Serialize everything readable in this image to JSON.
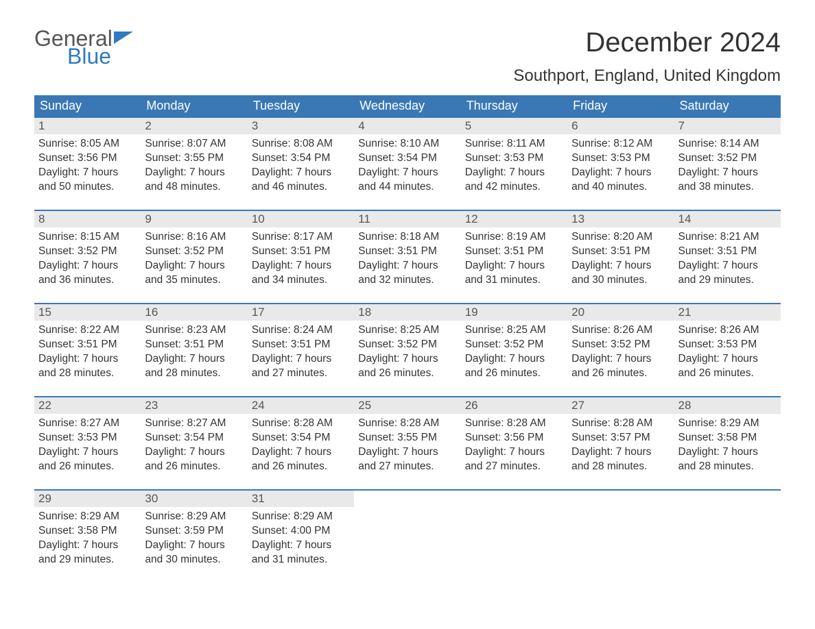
{
  "logo": {
    "text1": "General",
    "text2": "Blue",
    "text1_color": "#555555",
    "text2_color": "#2f7ac0",
    "flag_color": "#2f7ac0"
  },
  "header": {
    "month_year": "December 2024",
    "location": "Southport, England, United Kingdom"
  },
  "colors": {
    "header_bg": "#3a78b5",
    "header_text": "#ffffff",
    "daynum_bg": "#e9e9e9",
    "week_border": "#3a78b5",
    "body_text": "#333333"
  },
  "typography": {
    "month_title_fontsize": 40,
    "location_fontsize": 24,
    "dayhead_fontsize": 18,
    "daynum_fontsize": 17,
    "body_fontsize": 15.5
  },
  "day_names": [
    "Sunday",
    "Monday",
    "Tuesday",
    "Wednesday",
    "Thursday",
    "Friday",
    "Saturday"
  ],
  "weeks": [
    [
      {
        "n": "1",
        "sr": "Sunrise: 8:05 AM",
        "ss": "Sunset: 3:56 PM",
        "d1": "Daylight: 7 hours",
        "d2": "and 50 minutes."
      },
      {
        "n": "2",
        "sr": "Sunrise: 8:07 AM",
        "ss": "Sunset: 3:55 PM",
        "d1": "Daylight: 7 hours",
        "d2": "and 48 minutes."
      },
      {
        "n": "3",
        "sr": "Sunrise: 8:08 AM",
        "ss": "Sunset: 3:54 PM",
        "d1": "Daylight: 7 hours",
        "d2": "and 46 minutes."
      },
      {
        "n": "4",
        "sr": "Sunrise: 8:10 AM",
        "ss": "Sunset: 3:54 PM",
        "d1": "Daylight: 7 hours",
        "d2": "and 44 minutes."
      },
      {
        "n": "5",
        "sr": "Sunrise: 8:11 AM",
        "ss": "Sunset: 3:53 PM",
        "d1": "Daylight: 7 hours",
        "d2": "and 42 minutes."
      },
      {
        "n": "6",
        "sr": "Sunrise: 8:12 AM",
        "ss": "Sunset: 3:53 PM",
        "d1": "Daylight: 7 hours",
        "d2": "and 40 minutes."
      },
      {
        "n": "7",
        "sr": "Sunrise: 8:14 AM",
        "ss": "Sunset: 3:52 PM",
        "d1": "Daylight: 7 hours",
        "d2": "and 38 minutes."
      }
    ],
    [
      {
        "n": "8",
        "sr": "Sunrise: 8:15 AM",
        "ss": "Sunset: 3:52 PM",
        "d1": "Daylight: 7 hours",
        "d2": "and 36 minutes."
      },
      {
        "n": "9",
        "sr": "Sunrise: 8:16 AM",
        "ss": "Sunset: 3:52 PM",
        "d1": "Daylight: 7 hours",
        "d2": "and 35 minutes."
      },
      {
        "n": "10",
        "sr": "Sunrise: 8:17 AM",
        "ss": "Sunset: 3:51 PM",
        "d1": "Daylight: 7 hours",
        "d2": "and 34 minutes."
      },
      {
        "n": "11",
        "sr": "Sunrise: 8:18 AM",
        "ss": "Sunset: 3:51 PM",
        "d1": "Daylight: 7 hours",
        "d2": "and 32 minutes."
      },
      {
        "n": "12",
        "sr": "Sunrise: 8:19 AM",
        "ss": "Sunset: 3:51 PM",
        "d1": "Daylight: 7 hours",
        "d2": "and 31 minutes."
      },
      {
        "n": "13",
        "sr": "Sunrise: 8:20 AM",
        "ss": "Sunset: 3:51 PM",
        "d1": "Daylight: 7 hours",
        "d2": "and 30 minutes."
      },
      {
        "n": "14",
        "sr": "Sunrise: 8:21 AM",
        "ss": "Sunset: 3:51 PM",
        "d1": "Daylight: 7 hours",
        "d2": "and 29 minutes."
      }
    ],
    [
      {
        "n": "15",
        "sr": "Sunrise: 8:22 AM",
        "ss": "Sunset: 3:51 PM",
        "d1": "Daylight: 7 hours",
        "d2": "and 28 minutes."
      },
      {
        "n": "16",
        "sr": "Sunrise: 8:23 AM",
        "ss": "Sunset: 3:51 PM",
        "d1": "Daylight: 7 hours",
        "d2": "and 28 minutes."
      },
      {
        "n": "17",
        "sr": "Sunrise: 8:24 AM",
        "ss": "Sunset: 3:51 PM",
        "d1": "Daylight: 7 hours",
        "d2": "and 27 minutes."
      },
      {
        "n": "18",
        "sr": "Sunrise: 8:25 AM",
        "ss": "Sunset: 3:52 PM",
        "d1": "Daylight: 7 hours",
        "d2": "and 26 minutes."
      },
      {
        "n": "19",
        "sr": "Sunrise: 8:25 AM",
        "ss": "Sunset: 3:52 PM",
        "d1": "Daylight: 7 hours",
        "d2": "and 26 minutes."
      },
      {
        "n": "20",
        "sr": "Sunrise: 8:26 AM",
        "ss": "Sunset: 3:52 PM",
        "d1": "Daylight: 7 hours",
        "d2": "and 26 minutes."
      },
      {
        "n": "21",
        "sr": "Sunrise: 8:26 AM",
        "ss": "Sunset: 3:53 PM",
        "d1": "Daylight: 7 hours",
        "d2": "and 26 minutes."
      }
    ],
    [
      {
        "n": "22",
        "sr": "Sunrise: 8:27 AM",
        "ss": "Sunset: 3:53 PM",
        "d1": "Daylight: 7 hours",
        "d2": "and 26 minutes."
      },
      {
        "n": "23",
        "sr": "Sunrise: 8:27 AM",
        "ss": "Sunset: 3:54 PM",
        "d1": "Daylight: 7 hours",
        "d2": "and 26 minutes."
      },
      {
        "n": "24",
        "sr": "Sunrise: 8:28 AM",
        "ss": "Sunset: 3:54 PM",
        "d1": "Daylight: 7 hours",
        "d2": "and 26 minutes."
      },
      {
        "n": "25",
        "sr": "Sunrise: 8:28 AM",
        "ss": "Sunset: 3:55 PM",
        "d1": "Daylight: 7 hours",
        "d2": "and 27 minutes."
      },
      {
        "n": "26",
        "sr": "Sunrise: 8:28 AM",
        "ss": "Sunset: 3:56 PM",
        "d1": "Daylight: 7 hours",
        "d2": "and 27 minutes."
      },
      {
        "n": "27",
        "sr": "Sunrise: 8:28 AM",
        "ss": "Sunset: 3:57 PM",
        "d1": "Daylight: 7 hours",
        "d2": "and 28 minutes."
      },
      {
        "n": "28",
        "sr": "Sunrise: 8:29 AM",
        "ss": "Sunset: 3:58 PM",
        "d1": "Daylight: 7 hours",
        "d2": "and 28 minutes."
      }
    ],
    [
      {
        "n": "29",
        "sr": "Sunrise: 8:29 AM",
        "ss": "Sunset: 3:58 PM",
        "d1": "Daylight: 7 hours",
        "d2": "and 29 minutes."
      },
      {
        "n": "30",
        "sr": "Sunrise: 8:29 AM",
        "ss": "Sunset: 3:59 PM",
        "d1": "Daylight: 7 hours",
        "d2": "and 30 minutes."
      },
      {
        "n": "31",
        "sr": "Sunrise: 8:29 AM",
        "ss": "Sunset: 4:00 PM",
        "d1": "Daylight: 7 hours",
        "d2": "and 31 minutes."
      },
      {
        "empty": true
      },
      {
        "empty": true
      },
      {
        "empty": true
      },
      {
        "empty": true
      }
    ]
  ]
}
